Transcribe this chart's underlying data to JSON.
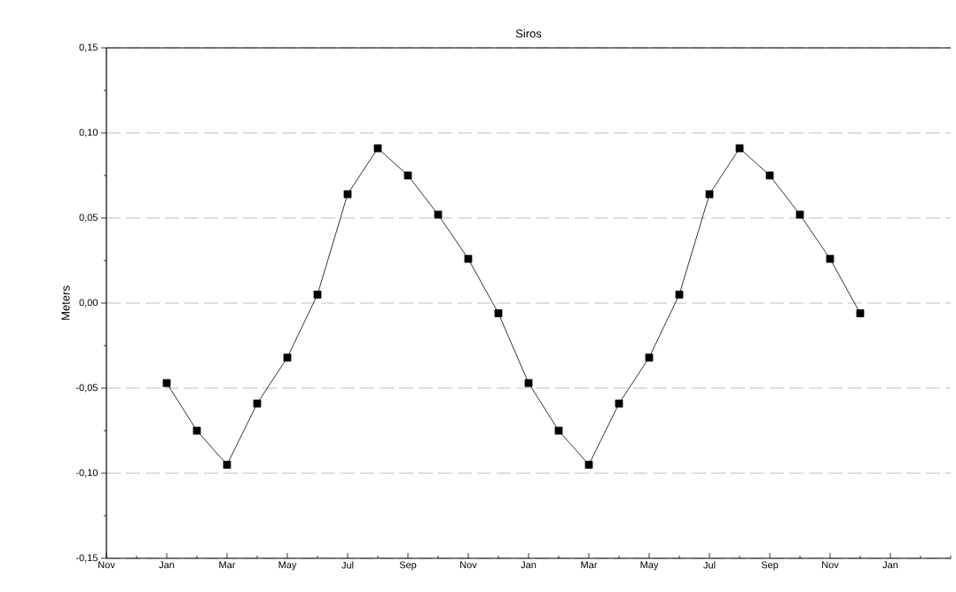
{
  "chart_data": {
    "type": "line",
    "title": "Siros",
    "ylabel": "Meters",
    "categories": [
      "Nov",
      null,
      "Jan",
      null,
      "Mar",
      null,
      "May",
      null,
      "Jul",
      null,
      "Sep",
      null,
      "Nov",
      null,
      "Jan",
      null,
      "Mar",
      null,
      "May",
      null,
      "Jul",
      null,
      "Sep",
      null,
      "Nov",
      null,
      "Jan",
      null,
      null
    ],
    "series": [
      {
        "color": "#000000",
        "values": [
          null,
          null,
          -0.047,
          -0.075,
          -0.095,
          -0.059,
          -0.032,
          0.005,
          0.064,
          0.091,
          0.075,
          0.052,
          0.026,
          -0.006,
          -0.047,
          -0.075,
          -0.095,
          -0.059,
          -0.032,
          0.005,
          0.064,
          0.091,
          0.075,
          0.052,
          0.026,
          -0.006,
          null,
          null,
          null
        ]
      }
    ],
    "ylim": [
      -0.15,
      0.15
    ],
    "yticks": [
      {
        "value": -0.15,
        "label": "-0,15"
      },
      {
        "value": -0.125,
        "label": null
      },
      {
        "value": -0.1,
        "label": "-0,10"
      },
      {
        "value": -0.075,
        "label": null
      },
      {
        "value": -0.05,
        "label": "-0,05"
      },
      {
        "value": -0.025,
        "label": null
      },
      {
        "value": 0,
        "label": "0,00"
      },
      {
        "value": 0.025,
        "label": null
      },
      {
        "value": 0.05,
        "label": "0,05"
      },
      {
        "value": 0.075,
        "label": null
      },
      {
        "value": 0.1,
        "label": "0,10"
      },
      {
        "value": 0.125,
        "label": null
      },
      {
        "value": 0.15,
        "label": "0,15"
      }
    ],
    "grid": "y",
    "marker": "square",
    "line_style": "solid"
  }
}
